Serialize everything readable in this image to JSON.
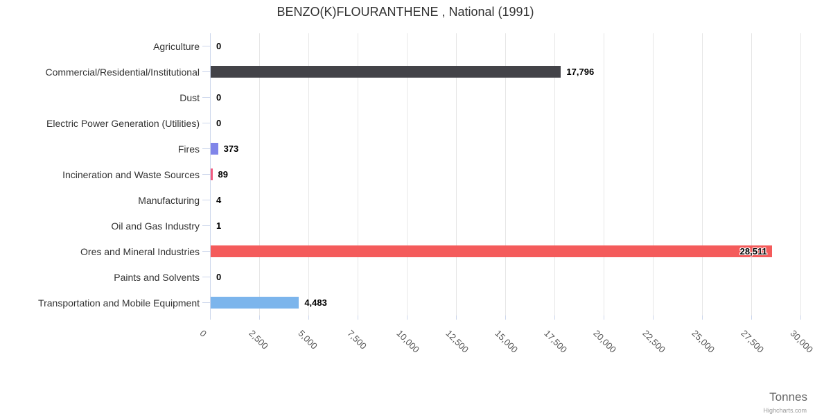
{
  "title": "BENZO(K)FLOURANTHENE , National (1991)",
  "axis": {
    "x_title": "Tonnes",
    "ticks": [
      "0",
      "2,500",
      "5,000",
      "7,500",
      "10,000",
      "12,500",
      "15,000",
      "17,500",
      "20,000",
      "22,500",
      "25,000",
      "27,500",
      "30,000"
    ],
    "tick_interval": 2500,
    "max": 30000
  },
  "credits": "Highcharts.com",
  "colors": {
    "axis_line": "#ccd6eb",
    "gridline": "#e6e6e6",
    "title_text": "#333333",
    "category_text": "#333333",
    "tick_text": "#555555"
  },
  "chart_data": {
    "type": "bar",
    "title": "BENZO(K)FLOURANTHENE , National (1991)",
    "xlabel": "Tonnes",
    "ylabel": "",
    "xlim": [
      0,
      30000
    ],
    "grid": true,
    "legend": false,
    "categories": [
      "Agriculture",
      "Commercial/Residential/Institutional",
      "Dust",
      "Electric Power Generation (Utilities)",
      "Fires",
      "Incineration and Waste Sources",
      "Manufacturing",
      "Oil and Gas Industry",
      "Ores and Mineral Industries",
      "Paints and Solvents",
      "Transportation and Mobile Equipment"
    ],
    "values": [
      0,
      17796,
      0,
      0,
      373,
      89,
      4,
      1,
      28511,
      0,
      4483
    ],
    "value_labels": [
      "0",
      "17,796",
      "0",
      "0",
      "373",
      "89",
      "4",
      "1",
      "28,511",
      "0",
      "4,483"
    ],
    "bar_colors": [
      "#7cb5ec",
      "#434348",
      "#90ed7d",
      "#f7a35c",
      "#8085e9",
      "#f15c80",
      "#e4d354",
      "#2b908f",
      "#f45b5b",
      "#91e8e1",
      "#7cb5ec"
    ],
    "inside_label_indices": [
      8
    ]
  }
}
